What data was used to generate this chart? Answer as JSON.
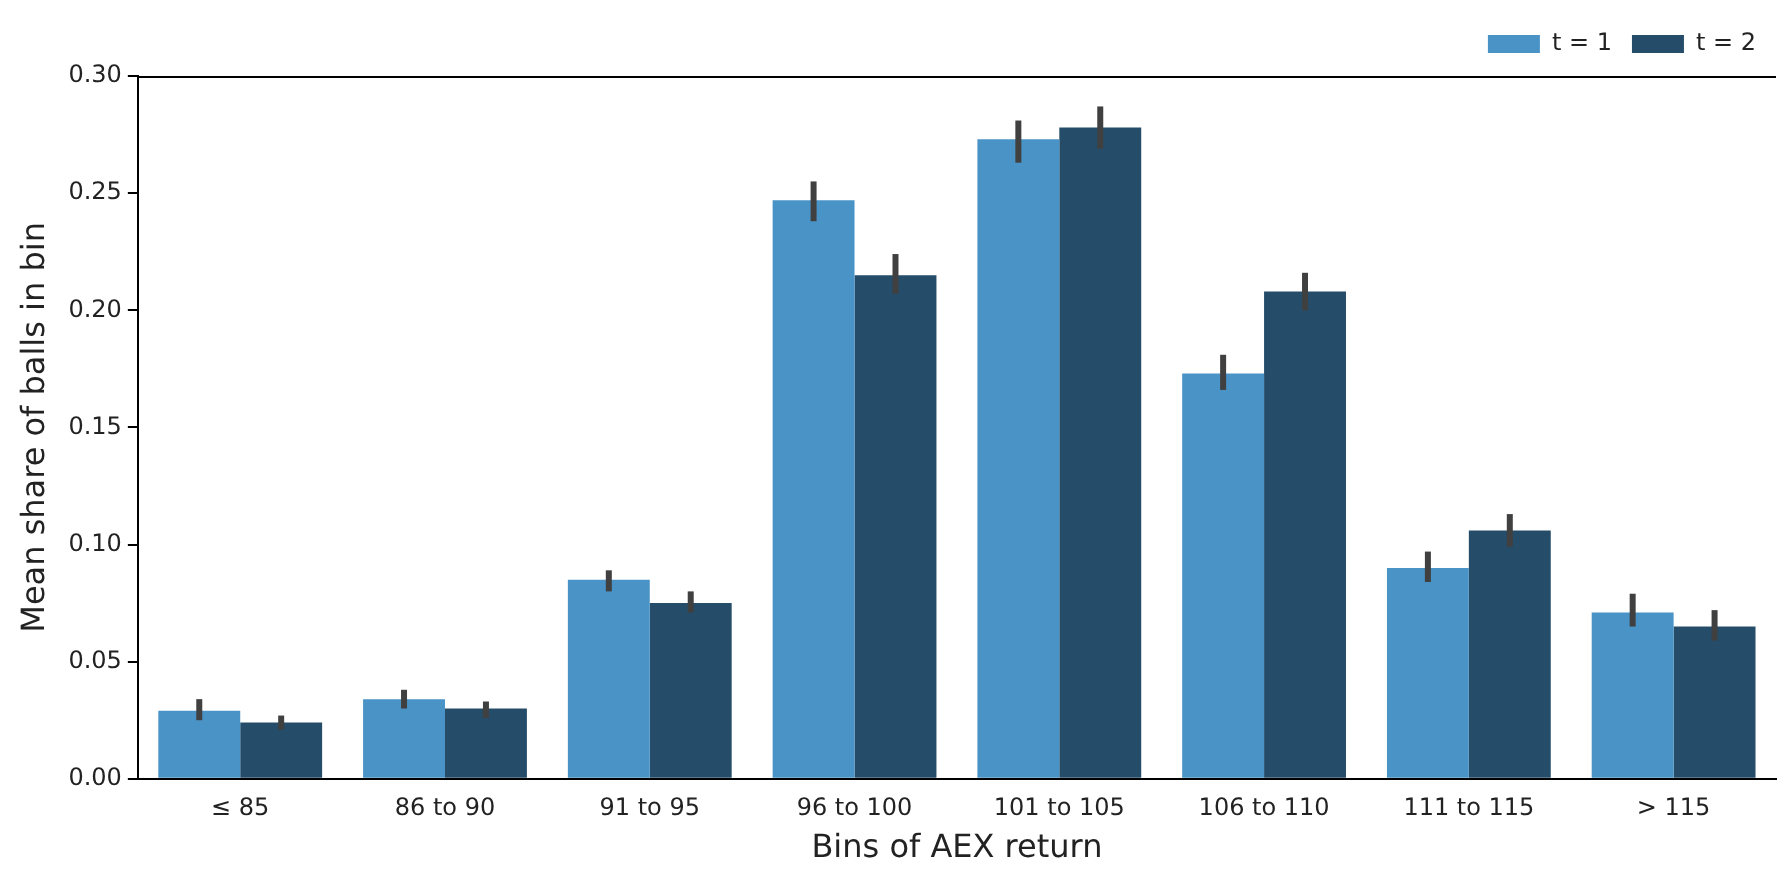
{
  "chart_data": {
    "type": "bar",
    "xlabel": "Bins of AEX return",
    "ylabel": "Mean share of balls in bin",
    "categories": [
      "≤ 85",
      "86 to 90",
      "91 to 95",
      "96 to 100",
      "101 to 105",
      "106 to 110",
      "111 to 115",
      "> 115"
    ],
    "series": [
      {
        "name": "t = 1",
        "color": "#4993c7",
        "values": [
          0.029,
          0.034,
          0.085,
          0.247,
          0.273,
          0.173,
          0.09,
          0.071
        ],
        "errors": [
          [
            0.025,
            0.034
          ],
          [
            0.03,
            0.038
          ],
          [
            0.08,
            0.089
          ],
          [
            0.238,
            0.255
          ],
          [
            0.263,
            0.281
          ],
          [
            0.166,
            0.181
          ],
          [
            0.084,
            0.097
          ],
          [
            0.065,
            0.079
          ]
        ]
      },
      {
        "name": "t = 2",
        "color": "#254c68",
        "values": [
          0.024,
          0.03,
          0.075,
          0.215,
          0.278,
          0.208,
          0.106,
          0.065
        ],
        "errors": [
          [
            0.021,
            0.027
          ],
          [
            0.026,
            0.033
          ],
          [
            0.071,
            0.08
          ],
          [
            0.207,
            0.224
          ],
          [
            0.269,
            0.287
          ],
          [
            0.2,
            0.216
          ],
          [
            0.099,
            0.113
          ],
          [
            0.059,
            0.072
          ]
        ]
      }
    ],
    "ylim": [
      0,
      0.3
    ],
    "yticks": [
      {
        "value": 0,
        "label": "0.00"
      },
      {
        "value": 0.05,
        "label": "0.05"
      },
      {
        "value": 0.1,
        "label": "0.10"
      },
      {
        "value": 0.15,
        "label": "0.15"
      },
      {
        "value": 0.2,
        "label": "0.20"
      },
      {
        "value": 0.25,
        "label": "0.25"
      },
      {
        "value": 0.3,
        "label": "0.30"
      }
    ],
    "grid": false,
    "legend": "top right"
  }
}
